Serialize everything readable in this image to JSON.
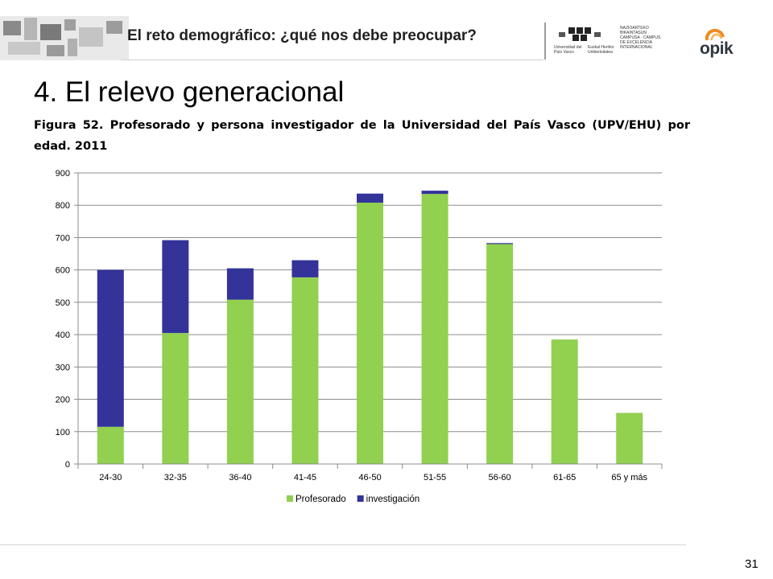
{
  "header": {
    "title": "El reto demográfico: ¿qué nos debe preocupar?",
    "logo_upv_text1": "Universidad del País Vasco",
    "logo_upv_text2": "Euskal Herriko Unibertsitatea",
    "logo_campus_text": "NAZIOARTEKO BIKAINTASUN CAMPUSA · CAMPUS DE EXCELENCIA INTERNACIONAL",
    "logo_opik_text": "opik"
  },
  "section_title": "4. El relevo generacional",
  "figure_caption": "Figura 52. Profesorado y persona investigador de la Universidad del País Vasco (UPV/EHU) por edad. 2011",
  "chart_data": {
    "type": "bar",
    "stacked": true,
    "categories": [
      "24-30",
      "32-35",
      "36-40",
      "41-45",
      "46-50",
      "51-55",
      "56-60",
      "61-65",
      "65 y más"
    ],
    "series": [
      {
        "name": "Profesorado",
        "color": "#92d050",
        "values": [
          115,
          405,
          508,
          577,
          808,
          835,
          680,
          385,
          158
        ]
      },
      {
        "name": "investigación",
        "color": "#333399",
        "values": [
          485,
          287,
          97,
          53,
          28,
          10,
          3,
          0,
          0
        ]
      }
    ],
    "ylim": [
      0,
      900
    ],
    "yticks": [
      0,
      100,
      200,
      300,
      400,
      500,
      600,
      700,
      800,
      900
    ],
    "grid": true,
    "legend": "bottom",
    "title": "",
    "xlabel": "",
    "ylabel": ""
  },
  "page_number": "31"
}
